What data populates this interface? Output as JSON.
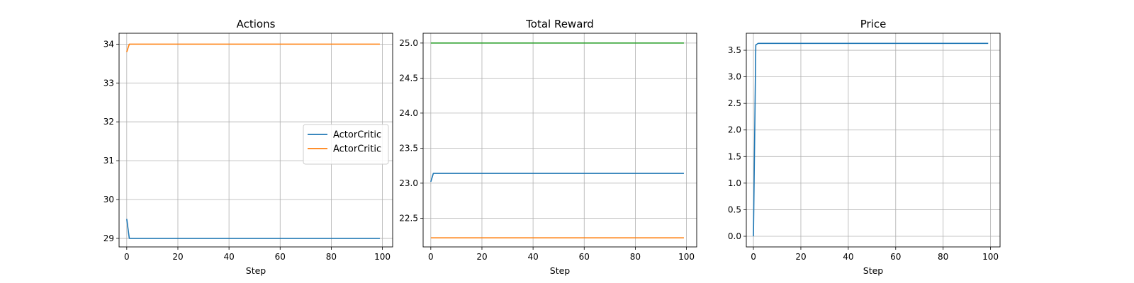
{
  "chart_data": [
    {
      "type": "line",
      "title": "Actions",
      "xlabel": "Step",
      "ylabel": "",
      "xlim": [
        -3,
        104
      ],
      "ylim": [
        28.78,
        34.28
      ],
      "xticks": [
        0,
        20,
        40,
        60,
        80,
        100
      ],
      "yticks": [
        29,
        30,
        31,
        32,
        33,
        34
      ],
      "ytick_labels": [
        "29",
        "30",
        "31",
        "32",
        "33",
        "34"
      ],
      "grid": true,
      "legend": {
        "placement": "center-right"
      },
      "series": [
        {
          "name": "ActorCritic",
          "color": "#1f77b4",
          "x": [
            0,
            1,
            99
          ],
          "y": [
            29.5,
            29.0,
            29.0
          ]
        },
        {
          "name": "ActorCritic",
          "color": "#ff7f0e",
          "x": [
            0,
            1,
            99
          ],
          "y": [
            33.8,
            34.0,
            34.0
          ]
        }
      ]
    },
    {
      "type": "line",
      "title": "Total Reward",
      "xlabel": "Step",
      "ylabel": "",
      "xlim": [
        -3,
        104
      ],
      "ylim": [
        22.09,
        25.14
      ],
      "xticks": [
        0,
        20,
        40,
        60,
        80,
        100
      ],
      "yticks": [
        22.5,
        23.0,
        23.5,
        24.0,
        24.5,
        25.0
      ],
      "ytick_labels": [
        "22.5",
        "23.0",
        "23.5",
        "24.0",
        "24.5",
        "25.0"
      ],
      "grid": true,
      "series": [
        {
          "color": "#2ca02c",
          "x": [
            0,
            99
          ],
          "y": [
            25.0,
            25.0
          ]
        },
        {
          "color": "#1f77b4",
          "x": [
            0,
            1,
            99
          ],
          "y": [
            23.02,
            23.14,
            23.14
          ]
        },
        {
          "color": "#ff7f0e",
          "x": [
            0,
            99
          ],
          "y": [
            22.22,
            22.22
          ]
        }
      ]
    },
    {
      "type": "line",
      "title": "Price",
      "xlabel": "Step",
      "ylabel": "",
      "xlim": [
        -3,
        104
      ],
      "ylim": [
        -0.2,
        3.82
      ],
      "xticks": [
        0,
        20,
        40,
        60,
        80,
        100
      ],
      "yticks": [
        0.0,
        0.5,
        1.0,
        1.5,
        2.0,
        2.5,
        3.0,
        3.5
      ],
      "ytick_labels": [
        "0.0",
        "0.5",
        "1.0",
        "1.5",
        "2.0",
        "2.5",
        "3.0",
        "3.5"
      ],
      "grid": true,
      "series": [
        {
          "color": "#1f77b4",
          "x": [
            0,
            1,
            2,
            99
          ],
          "y": [
            0.0,
            3.6,
            3.63,
            3.63
          ]
        }
      ]
    }
  ]
}
